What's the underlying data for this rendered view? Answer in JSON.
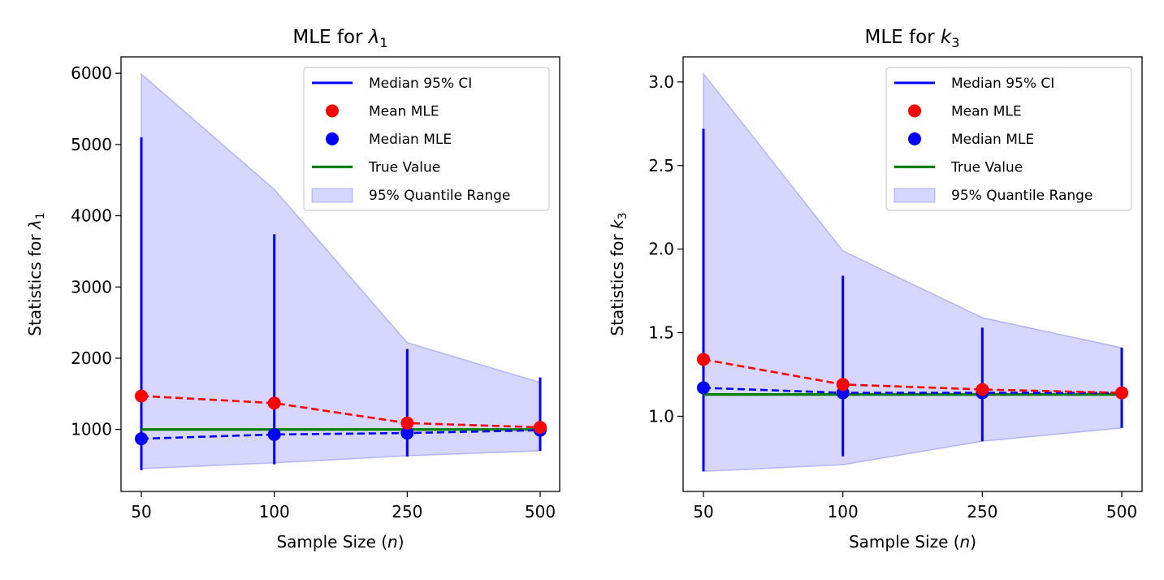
{
  "chart_data": [
    {
      "type": "line",
      "title": "MLE for λ₁",
      "xlabel": "Sample Size (n)",
      "ylabel": "Statistics for λ₁",
      "categories": [
        "50",
        "100",
        "250",
        "500"
      ],
      "ylim": [
        130,
        6230
      ],
      "yticks": [
        1000,
        2000,
        3000,
        4000,
        5000,
        6000
      ],
      "grid": false,
      "legend_position": "top-right",
      "legend": [
        "Median 95% CI",
        "Mean MLE",
        "Median MLE",
        "True Value",
        "95% Quantile Range"
      ],
      "series": [
        {
          "name": "Mean MLE",
          "values": [
            1470,
            1370,
            1090,
            1030
          ],
          "color": "#ff0000",
          "style": "dashed-marker"
        },
        {
          "name": "Median MLE",
          "values": [
            870,
            930,
            950,
            990
          ],
          "color": "#0000ff",
          "style": "dashed-marker"
        },
        {
          "name": "True Value",
          "values": [
            1000,
            1000,
            1000,
            1000
          ],
          "color": "#008000",
          "style": "solid"
        },
        {
          "name": "Median 95% CI",
          "low": [
            430,
            510,
            620,
            700
          ],
          "high": [
            5100,
            3740,
            2130,
            1730
          ],
          "color": "#0000ff",
          "style": "vline"
        },
        {
          "name": "95% Quantile Range",
          "low": [
            450,
            530,
            630,
            700
          ],
          "high": [
            5990,
            4370,
            2220,
            1660
          ],
          "color": "#0000ff",
          "style": "band"
        }
      ]
    },
    {
      "type": "line",
      "title": "MLE for k₃",
      "xlabel": "Sample Size (n)",
      "ylabel": "Statistics for k₃",
      "categories": [
        "50",
        "100",
        "250",
        "500"
      ],
      "ylim": [
        0.55,
        3.15
      ],
      "yticks": [
        1.0,
        1.5,
        2.0,
        2.5,
        3.0
      ],
      "grid": false,
      "legend_position": "top-right",
      "legend": [
        "Median 95% CI",
        "Mean MLE",
        "Median MLE",
        "True Value",
        "95% Quantile Range"
      ],
      "series": [
        {
          "name": "Mean MLE",
          "values": [
            1.34,
            1.19,
            1.16,
            1.14
          ],
          "color": "#ff0000",
          "style": "dashed-marker"
        },
        {
          "name": "Median MLE",
          "values": [
            1.17,
            1.14,
            1.14,
            1.14
          ],
          "color": "#0000ff",
          "style": "dashed-marker"
        },
        {
          "name": "True Value",
          "values": [
            1.13,
            1.13,
            1.13,
            1.13
          ],
          "color": "#008000",
          "style": "solid"
        },
        {
          "name": "Median 95% CI",
          "low": [
            0.67,
            0.76,
            0.85,
            0.93
          ],
          "high": [
            2.72,
            1.84,
            1.53,
            1.41
          ],
          "color": "#0000ff",
          "style": "vline"
        },
        {
          "name": "95% Quantile Range",
          "low": [
            0.67,
            0.71,
            0.85,
            0.93
          ],
          "high": [
            3.05,
            1.99,
            1.59,
            1.41
          ],
          "color": "#0000ff",
          "style": "band"
        }
      ]
    }
  ]
}
